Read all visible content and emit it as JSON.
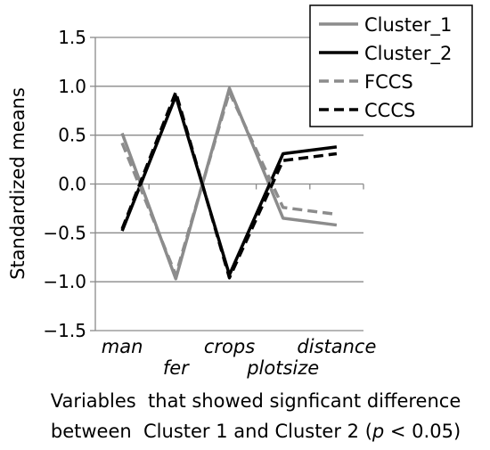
{
  "chart_data": {
    "type": "line",
    "categories": [
      "man",
      "fer",
      "crops",
      "plotsize",
      "distance"
    ],
    "series": [
      {
        "name": "Cluster_1",
        "values": [
          0.52,
          -0.97,
          0.98,
          -0.35,
          -0.42
        ],
        "color": "#8c8c8c",
        "dash": "solid"
      },
      {
        "name": "Cluster_2",
        "values": [
          -0.48,
          0.9,
          -0.93,
          0.31,
          0.38
        ],
        "color": "#000000",
        "dash": "solid"
      },
      {
        "name": "FCCS",
        "values": [
          0.42,
          -0.93,
          0.94,
          -0.24,
          -0.31
        ],
        "color": "#8c8c8c",
        "dash": "dashed"
      },
      {
        "name": "CCCS",
        "values": [
          -0.46,
          0.94,
          -0.96,
          0.24,
          0.31
        ],
        "color": "#000000",
        "dash": "dashed"
      }
    ],
    "ylabel": "Standardized means",
    "xlabel_line1": "Variables  that showed signficant difference",
    "xlabel_line2_pre": "between  Cluster 1 and Cluster 2 (",
    "xlabel_p": "p",
    "xlabel_line2_post": " < 0.05)",
    "ylim": [
      -1.5,
      1.5
    ],
    "yticks": [
      "1.5",
      "1.0",
      "0.5",
      "0.0",
      "−0.5",
      "−1.0",
      "−1.5"
    ],
    "yticks_values": [
      1.5,
      1.0,
      0.5,
      0.0,
      -0.5,
      -1.0,
      -1.5
    ],
    "grid": true,
    "legend_position": "top-right"
  }
}
